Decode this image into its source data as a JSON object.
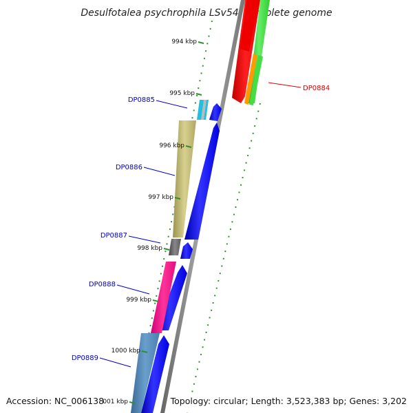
{
  "title": "Desulfotalea psychrophila LSv54, complete genome",
  "footer": {
    "accession": "Accession: NC_006138",
    "summary": "Topology: circular; Length: 3,523,383 bp; Genes: 3,202"
  },
  "ticks": [
    {
      "label": "994 kbp"
    },
    {
      "label": "995 kbp"
    },
    {
      "label": "996 kbp"
    },
    {
      "label": "997 kbp"
    },
    {
      "label": "998 kbp"
    },
    {
      "label": "999 kbp"
    },
    {
      "label": "1000 kbp"
    },
    {
      "label": "1001 kbp"
    }
  ],
  "genes": [
    {
      "label": "DP0884",
      "color": "#dd0000"
    },
    {
      "label": "DP0885",
      "color": "#0000cc"
    },
    {
      "label": "DP0886",
      "color": "#0000cc"
    },
    {
      "label": "DP0887",
      "color": "#0000cc"
    },
    {
      "label": "DP0888",
      "color": "#0000cc"
    },
    {
      "label": "DP0889",
      "color": "#0000cc"
    }
  ],
  "colors": {
    "backbone": "#8a8a8a",
    "forward_cds": "#0000ff",
    "reverse_cds": "#ff0000",
    "rna_green": "#33cc33",
    "rna_orange": "#ff9900",
    "tick_green": "#2f8f2f"
  }
}
